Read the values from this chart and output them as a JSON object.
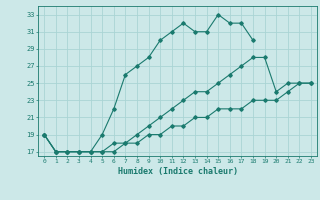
{
  "xlabel": "Humidex (Indice chaleur)",
  "bg_color": "#cce8e8",
  "grid_color": "#aad4d4",
  "line_color": "#1a7a6e",
  "xlim": [
    -0.5,
    23.5
  ],
  "ylim": [
    16.5,
    34.0
  ],
  "xticks": [
    0,
    1,
    2,
    3,
    4,
    5,
    6,
    7,
    8,
    9,
    10,
    11,
    12,
    13,
    14,
    15,
    16,
    17,
    18,
    19,
    20,
    21,
    22,
    23
  ],
  "yticks": [
    17,
    19,
    21,
    23,
    25,
    27,
    29,
    31,
    33
  ],
  "line1_x": [
    0,
    1,
    2,
    3,
    4,
    5,
    6,
    7,
    8,
    9,
    10,
    11,
    12,
    13,
    14,
    15,
    16,
    17,
    18
  ],
  "line1_y": [
    19,
    17,
    17,
    17,
    17,
    19,
    22,
    26,
    27,
    28,
    30,
    31,
    32,
    31,
    31,
    33,
    32,
    32,
    30
  ],
  "line2_x": [
    0,
    1,
    2,
    3,
    4,
    5,
    6,
    7,
    8,
    9,
    10,
    11,
    12,
    13,
    14,
    15,
    16,
    17,
    18,
    19,
    20,
    21,
    22,
    23
  ],
  "line2_y": [
    19,
    17,
    17,
    17,
    17,
    17,
    18,
    18,
    19,
    20,
    21,
    22,
    23,
    24,
    24,
    25,
    26,
    27,
    28,
    28,
    24,
    25,
    25,
    25
  ],
  "line3_x": [
    0,
    1,
    2,
    3,
    4,
    5,
    6,
    7,
    8,
    9,
    10,
    11,
    12,
    13,
    14,
    15,
    16,
    17,
    18,
    19,
    20,
    21,
    22,
    23
  ],
  "line3_y": [
    19,
    17,
    17,
    17,
    17,
    17,
    17,
    18,
    18,
    19,
    19,
    20,
    20,
    21,
    21,
    22,
    22,
    22,
    23,
    23,
    23,
    24,
    25,
    25
  ]
}
